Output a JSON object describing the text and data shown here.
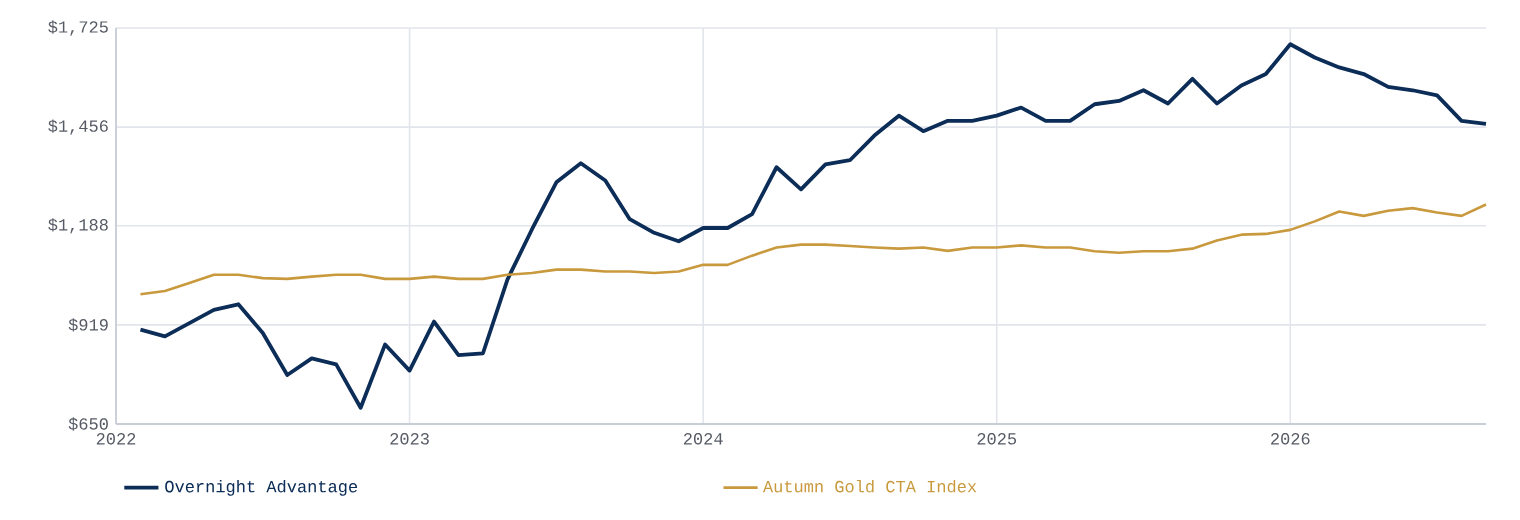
{
  "chart_data": {
    "type": "line",
    "x": [
      "2022-02",
      "2022-03",
      "2022-04",
      "2022-05",
      "2022-06",
      "2022-07",
      "2022-08",
      "2022-09",
      "2022-10",
      "2022-11",
      "2022-12",
      "2023-01",
      "2023-02",
      "2023-03",
      "2023-04",
      "2023-05",
      "2023-06",
      "2023-07",
      "2023-08",
      "2023-09",
      "2023-10",
      "2023-11",
      "2023-12",
      "2024-01",
      "2024-02",
      "2024-03",
      "2024-04",
      "2024-05",
      "2024-06",
      "2024-07",
      "2024-08",
      "2024-09",
      "2024-10",
      "2024-11",
      "2024-12",
      "2025-01",
      "2025-02",
      "2025-03",
      "2025-04",
      "2025-05",
      "2025-06",
      "2025-07",
      "2025-08",
      "2025-09",
      "2025-10",
      "2025-11",
      "2025-12",
      "2026-01",
      "2026-02",
      "2026-03",
      "2026-04",
      "2026-05",
      "2026-06",
      "2026-07",
      "2026-08",
      "2026-09"
    ],
    "series": [
      {
        "name": "Overnight Advantage",
        "color": "#0c2d57",
        "values": [
          906,
          888,
          924,
          960,
          975,
          897,
          783,
          828,
          812,
          694,
          866,
          795,
          928,
          837,
          842,
          1042,
          1178,
          1306,
          1358,
          1311,
          1206,
          1169,
          1146,
          1182,
          1182,
          1220,
          1347,
          1287,
          1355,
          1366,
          1433,
          1487,
          1445,
          1473,
          1473,
          1487,
          1509,
          1473,
          1473,
          1518,
          1527,
          1556,
          1520,
          1587,
          1520,
          1569,
          1600,
          1681,
          1645,
          1618,
          1600,
          1565,
          1556,
          1542,
          1473,
          1465
        ]
      },
      {
        "name": "Autumn Gold CTA Index",
        "color": "#c9993e",
        "values": [
          1002,
          1011,
          1033,
          1055,
          1055,
          1046,
          1044,
          1050,
          1055,
          1055,
          1044,
          1044,
          1050,
          1044,
          1044,
          1055,
          1060,
          1069,
          1069,
          1064,
          1064,
          1060,
          1064,
          1082,
          1082,
          1107,
          1129,
          1137,
          1137,
          1133,
          1129,
          1126,
          1129,
          1120,
          1129,
          1129,
          1135,
          1129,
          1129,
          1119,
          1115,
          1119,
          1119,
          1126,
          1148,
          1164,
          1166,
          1177,
          1200,
          1227,
          1215,
          1229,
          1236,
          1224,
          1215,
          1246
        ]
      }
    ],
    "xlim": [
      "2022",
      "2026-09"
    ],
    "xticks": [
      "2022",
      "2023",
      "2024",
      "2025",
      "2026"
    ],
    "ylim": [
      650,
      1725
    ],
    "yticks": [
      {
        "value": 650,
        "label": "$650"
      },
      {
        "value": 919,
        "label": "$919"
      },
      {
        "value": 1188,
        "label": "$1,188"
      },
      {
        "value": 1456,
        "label": "$1,456"
      },
      {
        "value": 1725,
        "label": "$1,725"
      }
    ],
    "grid": true,
    "legend": "bottom"
  }
}
